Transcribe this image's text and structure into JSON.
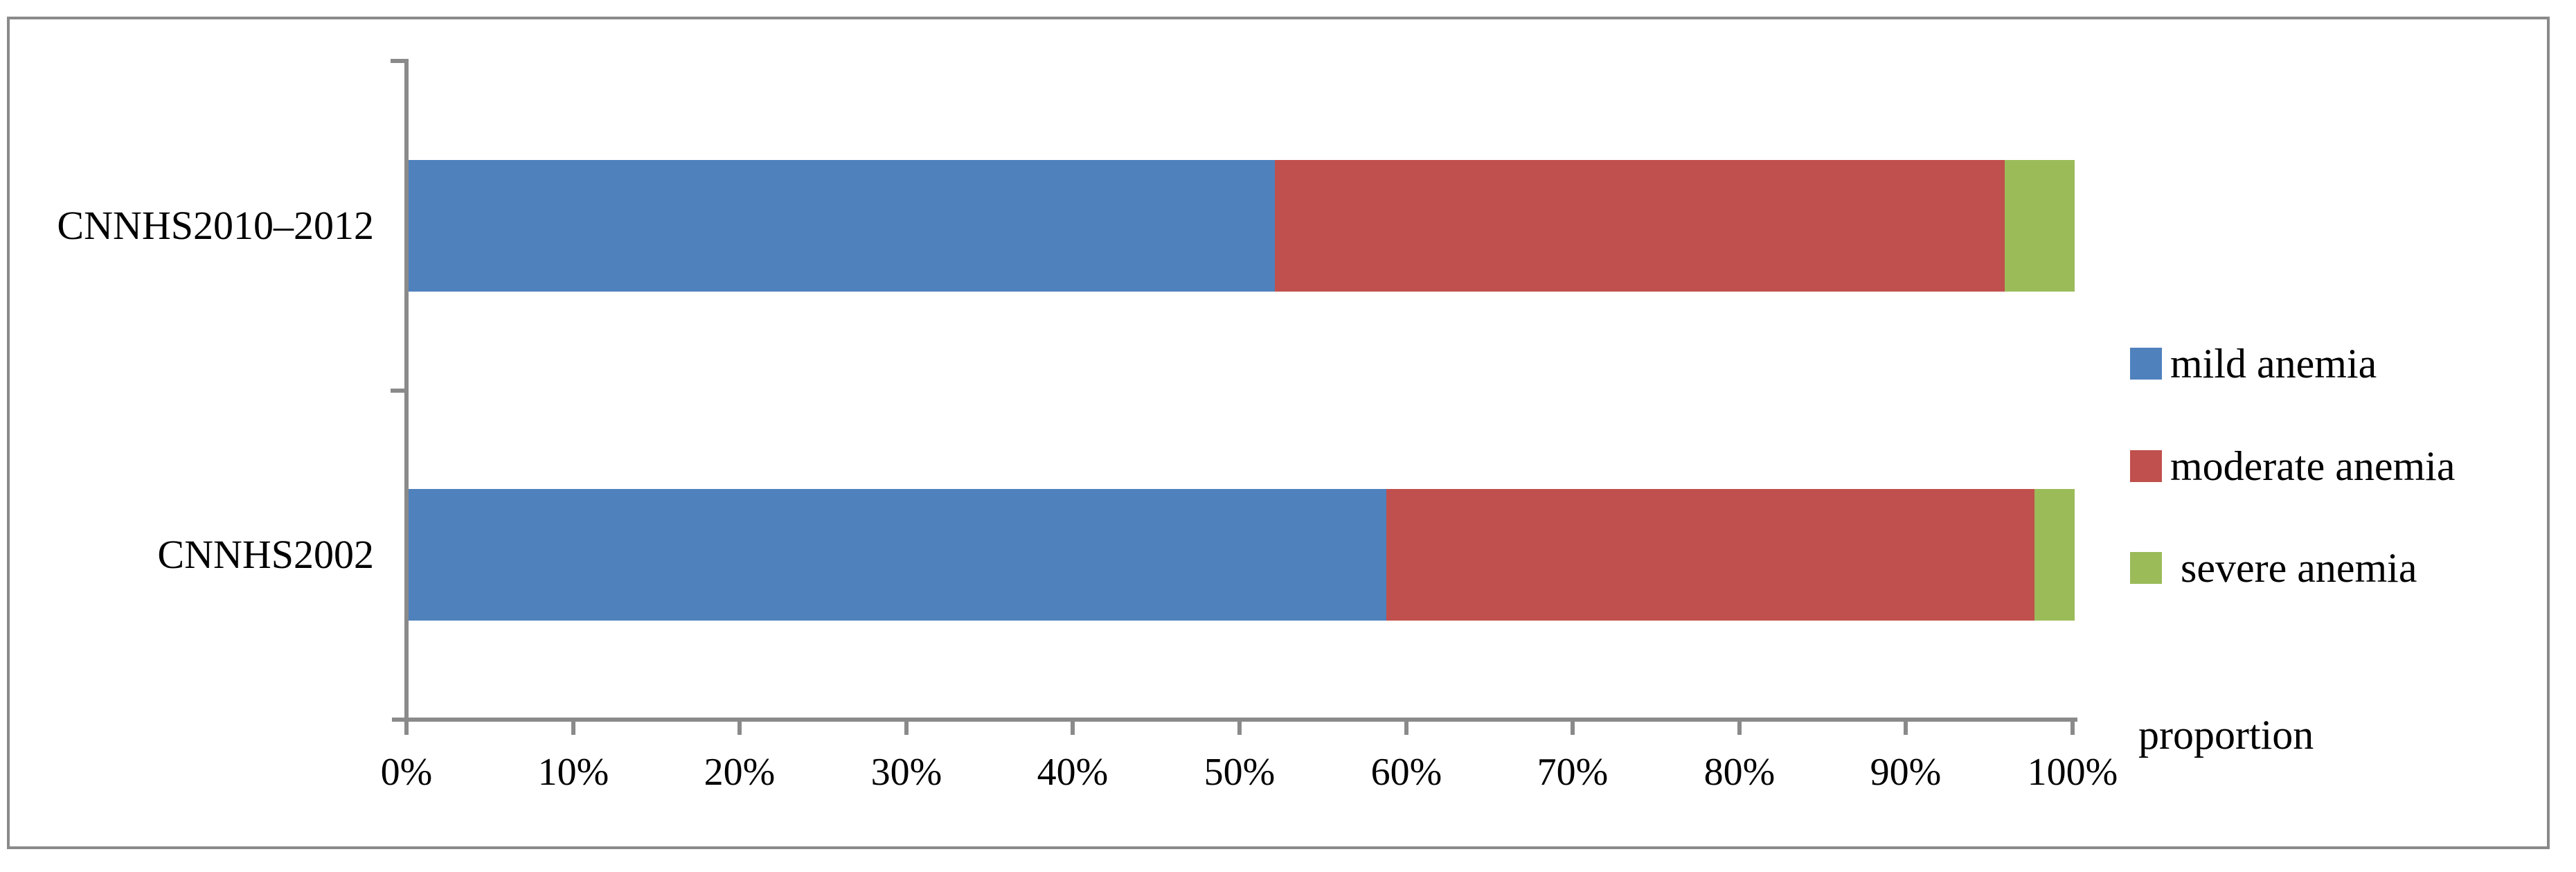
{
  "chart_data": {
    "type": "bar",
    "subtype": "horizontal-stacked",
    "title": "",
    "xlabel": "proportion",
    "ylabel": "",
    "xlim": [
      0,
      100
    ],
    "grid": false,
    "legend_position": "right",
    "categories": [
      "CNNHS2010–2012",
      "CNNHS2002"
    ],
    "series": [
      {
        "name": "mild anemia",
        "color": "#4F81BD",
        "values": [
          52.0,
          58.7
        ]
      },
      {
        "name": "moderate anemia",
        "color": "#C0504D",
        "values": [
          43.8,
          38.9
        ]
      },
      {
        "name": "severe anemia",
        "color": "#9BBB59",
        "values": [
          4.2,
          2.4
        ]
      }
    ],
    "x_ticks": [
      "0%",
      "10%",
      "20%",
      "30%",
      "40%",
      "50%",
      "60%",
      "70%",
      "80%",
      "90%",
      "100%"
    ]
  },
  "legend": {
    "items": [
      {
        "label": "mild anemia"
      },
      {
        "label": "moderate anemia"
      },
      {
        "label": " severe anemia"
      }
    ]
  },
  "colors": {
    "axis": "#8a8a8a",
    "border": "#8a8a8a",
    "text": "#000000",
    "background": "#ffffff"
  }
}
